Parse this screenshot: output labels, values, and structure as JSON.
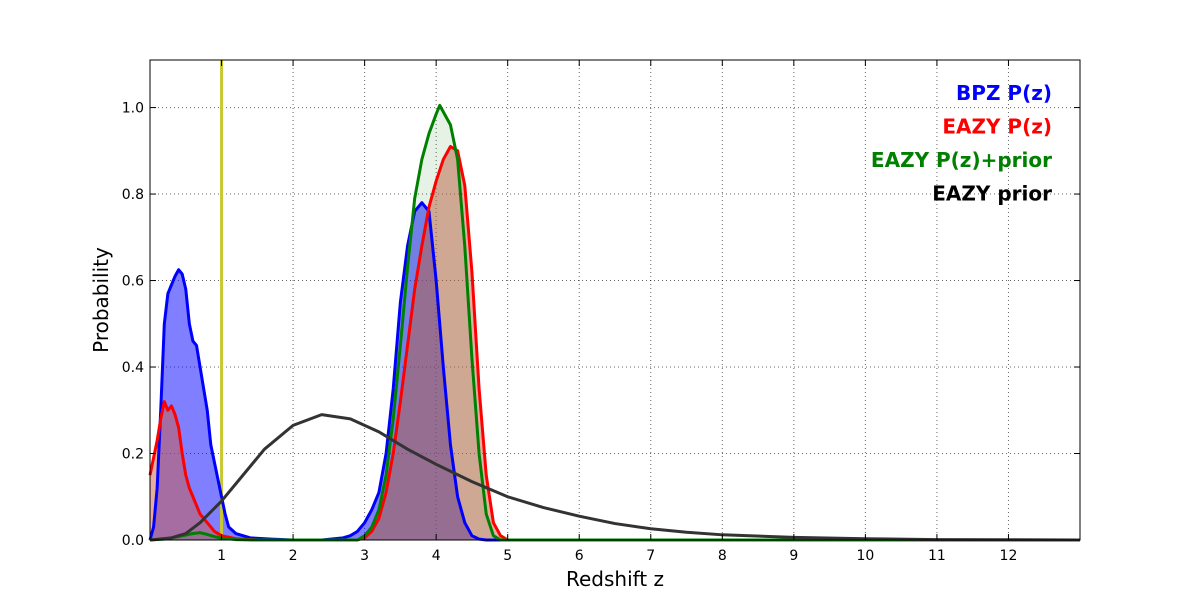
{
  "chart_data": {
    "type": "area",
    "xlabel": "Redshift z",
    "ylabel": "Probability",
    "xlim": [
      0,
      13
    ],
    "ylim": [
      0,
      1.11
    ],
    "xticks": [
      "1",
      "2",
      "3",
      "4",
      "5",
      "6",
      "7",
      "8",
      "9",
      "10",
      "11",
      "12"
    ],
    "yticks": [
      "0.0",
      "0.2",
      "0.4",
      "0.6",
      "0.8",
      "1.0"
    ],
    "grid": true,
    "legend_position": "top-right",
    "vline": {
      "x": 1.0,
      "color": "#c8c832"
    },
    "legend": [
      {
        "label": "BPZ P(z)",
        "color": "#0000ff"
      },
      {
        "label": "EAZY P(z)",
        "color": "#ff0000"
      },
      {
        "label": "EAZY P(z)+prior",
        "color": "#008000"
      },
      {
        "label": "EAZY prior",
        "color": "#000000"
      }
    ],
    "series": [
      {
        "name": "BPZ P(z)",
        "color": "#0000ff",
        "fill": "rgba(0,0,255,0.5)",
        "points": [
          [
            0,
            0
          ],
          [
            0.05,
            0.03
          ],
          [
            0.1,
            0.12
          ],
          [
            0.15,
            0.3
          ],
          [
            0.2,
            0.5
          ],
          [
            0.25,
            0.57
          ],
          [
            0.3,
            0.59
          ],
          [
            0.35,
            0.61
          ],
          [
            0.4,
            0.625
          ],
          [
            0.45,
            0.615
          ],
          [
            0.5,
            0.58
          ],
          [
            0.55,
            0.5
          ],
          [
            0.6,
            0.46
          ],
          [
            0.65,
            0.45
          ],
          [
            0.7,
            0.4
          ],
          [
            0.75,
            0.35
          ],
          [
            0.8,
            0.3
          ],
          [
            0.85,
            0.22
          ],
          [
            0.9,
            0.18
          ],
          [
            0.95,
            0.14
          ],
          [
            1.0,
            0.1
          ],
          [
            1.05,
            0.06
          ],
          [
            1.1,
            0.03
          ],
          [
            1.2,
            0.015
          ],
          [
            1.4,
            0.005
          ],
          [
            1.7,
            0.002
          ],
          [
            2.0,
            0
          ],
          [
            2.4,
            0
          ],
          [
            2.7,
            0.005
          ],
          [
            2.8,
            0.01
          ],
          [
            2.9,
            0.02
          ],
          [
            3.0,
            0.04
          ],
          [
            3.1,
            0.07
          ],
          [
            3.2,
            0.11
          ],
          [
            3.3,
            0.2
          ],
          [
            3.4,
            0.35
          ],
          [
            3.5,
            0.55
          ],
          [
            3.6,
            0.68
          ],
          [
            3.7,
            0.76
          ],
          [
            3.8,
            0.78
          ],
          [
            3.9,
            0.76
          ],
          [
            4.0,
            0.6
          ],
          [
            4.1,
            0.4
          ],
          [
            4.2,
            0.22
          ],
          [
            4.3,
            0.1
          ],
          [
            4.4,
            0.04
          ],
          [
            4.5,
            0.01
          ],
          [
            4.6,
            0.002
          ],
          [
            4.7,
            0
          ],
          [
            13,
            0
          ]
        ]
      },
      {
        "name": "EAZY P(z)",
        "color": "#ff0000",
        "fill": "rgba(205,92,72,0.5)",
        "points": [
          [
            0,
            0.15
          ],
          [
            0.05,
            0.19
          ],
          [
            0.1,
            0.23
          ],
          [
            0.15,
            0.28
          ],
          [
            0.2,
            0.32
          ],
          [
            0.25,
            0.3
          ],
          [
            0.3,
            0.31
          ],
          [
            0.35,
            0.29
          ],
          [
            0.4,
            0.26
          ],
          [
            0.45,
            0.2
          ],
          [
            0.5,
            0.15
          ],
          [
            0.55,
            0.12
          ],
          [
            0.6,
            0.1
          ],
          [
            0.65,
            0.08
          ],
          [
            0.7,
            0.06
          ],
          [
            0.8,
            0.04
          ],
          [
            0.9,
            0.02
          ],
          [
            1.0,
            0.01
          ],
          [
            1.2,
            0.003
          ],
          [
            1.5,
            0
          ],
          [
            2.9,
            0
          ],
          [
            3.0,
            0.005
          ],
          [
            3.1,
            0.02
          ],
          [
            3.2,
            0.05
          ],
          [
            3.3,
            0.11
          ],
          [
            3.4,
            0.2
          ],
          [
            3.5,
            0.32
          ],
          [
            3.6,
            0.45
          ],
          [
            3.7,
            0.58
          ],
          [
            3.8,
            0.68
          ],
          [
            3.9,
            0.77
          ],
          [
            4.0,
            0.83
          ],
          [
            4.1,
            0.88
          ],
          [
            4.2,
            0.91
          ],
          [
            4.3,
            0.9
          ],
          [
            4.4,
            0.82
          ],
          [
            4.5,
            0.62
          ],
          [
            4.6,
            0.35
          ],
          [
            4.7,
            0.15
          ],
          [
            4.8,
            0.04
          ],
          [
            4.9,
            0.01
          ],
          [
            5.0,
            0
          ],
          [
            13,
            0
          ]
        ]
      },
      {
        "name": "EAZY P(z)+prior",
        "color": "#008000",
        "fill": "rgba(0,128,0,0.1)",
        "points": [
          [
            0,
            0
          ],
          [
            0.2,
            0.002
          ],
          [
            0.4,
            0.008
          ],
          [
            0.6,
            0.015
          ],
          [
            0.7,
            0.017
          ],
          [
            0.8,
            0.013
          ],
          [
            0.9,
            0.008
          ],
          [
            1.0,
            0.004
          ],
          [
            1.2,
            0.001
          ],
          [
            1.5,
            0
          ],
          [
            2.9,
            0
          ],
          [
            3.0,
            0.01
          ],
          [
            3.1,
            0.03
          ],
          [
            3.2,
            0.07
          ],
          [
            3.3,
            0.15
          ],
          [
            3.4,
            0.28
          ],
          [
            3.5,
            0.45
          ],
          [
            3.6,
            0.63
          ],
          [
            3.7,
            0.79
          ],
          [
            3.8,
            0.88
          ],
          [
            3.9,
            0.94
          ],
          [
            4.0,
            0.985
          ],
          [
            4.05,
            1.005
          ],
          [
            4.1,
            0.99
          ],
          [
            4.2,
            0.96
          ],
          [
            4.3,
            0.88
          ],
          [
            4.4,
            0.68
          ],
          [
            4.5,
            0.42
          ],
          [
            4.6,
            0.2
          ],
          [
            4.7,
            0.06
          ],
          [
            4.8,
            0.01
          ],
          [
            4.9,
            0
          ],
          [
            13,
            0
          ]
        ]
      },
      {
        "name": "EAZY prior",
        "color": "#333333",
        "fill": "none",
        "points": [
          [
            0,
            0
          ],
          [
            0.3,
            0.005
          ],
          [
            0.5,
            0.015
          ],
          [
            0.7,
            0.04
          ],
          [
            1.0,
            0.09
          ],
          [
            1.3,
            0.15
          ],
          [
            1.6,
            0.21
          ],
          [
            2.0,
            0.265
          ],
          [
            2.4,
            0.29
          ],
          [
            2.8,
            0.28
          ],
          [
            3.2,
            0.25
          ],
          [
            3.6,
            0.21
          ],
          [
            4.0,
            0.175
          ],
          [
            4.5,
            0.135
          ],
          [
            5.0,
            0.1
          ],
          [
            5.5,
            0.075
          ],
          [
            6.0,
            0.055
          ],
          [
            6.5,
            0.038
          ],
          [
            7.0,
            0.026
          ],
          [
            7.5,
            0.018
          ],
          [
            8.0,
            0.012
          ],
          [
            9.0,
            0.006
          ],
          [
            10.0,
            0.003
          ],
          [
            11.0,
            0.001
          ],
          [
            12.0,
            0.0005
          ],
          [
            13,
            0
          ]
        ]
      }
    ]
  }
}
